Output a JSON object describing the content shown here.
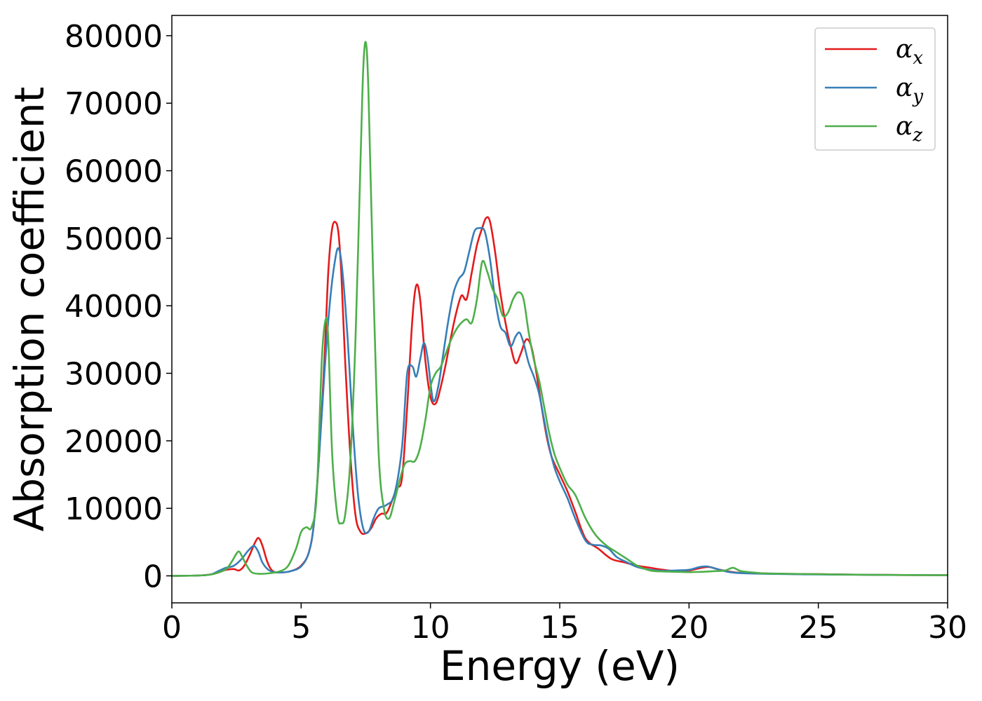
{
  "chart_data": {
    "type": "line",
    "xlabel": "Energy (eV)",
    "ylabel": "Absorption coefficient",
    "xlim": [
      0,
      30
    ],
    "ylim": [
      -4000,
      83000
    ],
    "x_ticks": [
      0,
      5,
      10,
      15,
      20,
      25,
      30
    ],
    "y_ticks": [
      0,
      10000,
      20000,
      30000,
      40000,
      50000,
      60000,
      70000,
      80000
    ],
    "grid": false,
    "legend_position": "top-right",
    "series": [
      {
        "name": "αx",
        "symbol": "α",
        "subscript": "x",
        "color": "#e41a1c",
        "x": [
          0,
          1,
          1.5,
          1.8,
          2.1,
          2.4,
          2.6,
          2.8,
          3.0,
          3.2,
          3.35,
          3.5,
          3.7,
          3.9,
          4.2,
          4.6,
          5.0,
          5.3,
          5.5,
          5.7,
          5.9,
          6.05,
          6.2,
          6.35,
          6.45,
          6.55,
          6.7,
          6.9,
          7.1,
          7.3,
          7.5,
          7.7,
          7.9,
          8.1,
          8.3,
          8.5,
          8.7,
          8.9,
          9.1,
          9.3,
          9.45,
          9.6,
          9.8,
          10.0,
          10.2,
          10.4,
          10.6,
          10.8,
          11.0,
          11.2,
          11.4,
          11.6,
          11.8,
          12.0,
          12.15,
          12.3,
          12.5,
          12.7,
          12.9,
          13.1,
          13.3,
          13.5,
          13.7,
          13.9,
          14.1,
          14.3,
          14.5,
          14.7,
          15.0,
          15.3,
          15.6,
          16.0,
          16.5,
          17.0,
          17.5,
          18.0,
          18.5,
          19.0,
          19.5,
          20.0,
          20.5,
          20.8,
          21.2,
          21.8,
          22.5,
          23.5,
          25,
          27,
          30
        ],
        "values": [
          0,
          50,
          200,
          500,
          900,
          1000,
          800,
          1500,
          3000,
          4800,
          5600,
          4500,
          2000,
          700,
          500,
          700,
          1500,
          3500,
          8000,
          18000,
          32000,
          45000,
          51500,
          52300,
          50500,
          45000,
          32000,
          18000,
          9000,
          6500,
          6300,
          7000,
          8500,
          9200,
          9300,
          11000,
          13000,
          14500,
          25000,
          38000,
          43000,
          41000,
          32000,
          26500,
          25500,
          28000,
          31500,
          35500,
          39000,
          41500,
          41000,
          45000,
          49000,
          51500,
          53000,
          52500,
          48000,
          42000,
          37500,
          34000,
          31500,
          33000,
          35000,
          34000,
          30000,
          25000,
          20500,
          17500,
          15000,
          12500,
          9500,
          5500,
          4000,
          2500,
          2000,
          1500,
          1200,
          900,
          700,
          800,
          1200,
          1300,
          900,
          500,
          400,
          300,
          250,
          150,
          100
        ]
      },
      {
        "name": "αy",
        "symbol": "α",
        "subscript": "y",
        "color": "#377eb8",
        "x": [
          0,
          1,
          1.5,
          1.8,
          2.1,
          2.4,
          2.7,
          2.9,
          3.1,
          3.2,
          3.35,
          3.5,
          3.7,
          3.9,
          4.2,
          4.6,
          5.0,
          5.3,
          5.5,
          5.7,
          5.9,
          6.1,
          6.3,
          6.45,
          6.6,
          6.8,
          7.0,
          7.2,
          7.4,
          7.6,
          7.8,
          8.0,
          8.3,
          8.6,
          8.9,
          9.1,
          9.3,
          9.45,
          9.6,
          9.75,
          9.9,
          10.1,
          10.3,
          10.5,
          10.7,
          10.9,
          11.1,
          11.3,
          11.5,
          11.7,
          11.9,
          12.1,
          12.3,
          12.5,
          12.7,
          12.9,
          13.1,
          13.3,
          13.45,
          13.6,
          13.8,
          14.0,
          14.2,
          14.4,
          14.6,
          14.8,
          15.0,
          15.3,
          15.6,
          16.0,
          16.3,
          16.6,
          16.9,
          17.2,
          17.6,
          18.0,
          18.5,
          19.0,
          19.5,
          20.0,
          20.4,
          20.7,
          21.0,
          21.5,
          22.0,
          23,
          25,
          27,
          30
        ],
        "values": [
          0,
          50,
          200,
          700,
          1200,
          1500,
          2500,
          3500,
          4300,
          4400,
          3500,
          2000,
          1000,
          600,
          500,
          700,
          1400,
          3500,
          8000,
          18000,
          30000,
          40000,
          46500,
          48500,
          45000,
          35000,
          22000,
          12000,
          7000,
          6500,
          8500,
          10000,
          10500,
          12000,
          19000,
          30000,
          31000,
          29500,
          32000,
          34500,
          32000,
          26000,
          28000,
          33000,
          38000,
          42000,
          44000,
          45000,
          48000,
          51000,
          51500,
          51000,
          47000,
          41000,
          37000,
          36000,
          34000,
          35500,
          36000,
          34500,
          31500,
          29500,
          27000,
          23000,
          19000,
          16000,
          14000,
          11500,
          8500,
          5200,
          4600,
          4500,
          4000,
          2800,
          2000,
          1300,
          900,
          750,
          800,
          900,
          1300,
          1400,
          1100,
          600,
          400,
          300,
          200,
          150,
          100
        ]
      },
      {
        "name": "αz",
        "symbol": "α",
        "subscript": "z",
        "color": "#4daf4a",
        "x": [
          0,
          1,
          1.5,
          1.8,
          2.1,
          2.3,
          2.5,
          2.6,
          2.7,
          2.9,
          3.1,
          3.4,
          3.8,
          4.2,
          4.5,
          4.8,
          5.0,
          5.2,
          5.4,
          5.6,
          5.8,
          5.95,
          6.05,
          6.2,
          6.4,
          6.55,
          6.7,
          6.9,
          7.1,
          7.3,
          7.4,
          7.5,
          7.6,
          7.8,
          8.0,
          8.2,
          8.4,
          8.6,
          8.8,
          9.0,
          9.2,
          9.4,
          9.6,
          9.8,
          10.0,
          10.2,
          10.4,
          10.6,
          10.8,
          11.0,
          11.2,
          11.4,
          11.6,
          11.8,
          12.0,
          12.2,
          12.4,
          12.6,
          12.8,
          13.0,
          13.2,
          13.4,
          13.6,
          13.8,
          14.0,
          14.2,
          14.4,
          14.6,
          14.8,
          15.0,
          15.3,
          15.6,
          16.0,
          16.4,
          16.8,
          17.2,
          17.6,
          18.0,
          18.5,
          19.0,
          19.5,
          20.0,
          20.5,
          21.0,
          21.4,
          21.7,
          22.0,
          22.5,
          23,
          25,
          27,
          30
        ],
        "values": [
          0,
          50,
          200,
          500,
          1000,
          2000,
          3300,
          3600,
          3000,
          1500,
          500,
          300,
          400,
          700,
          1500,
          4000,
          6500,
          7200,
          7200,
          12000,
          32000,
          38000,
          35000,
          18000,
          9000,
          7800,
          9000,
          17000,
          35000,
          62000,
          75000,
          79000,
          72000,
          42000,
          18000,
          10000,
          8500,
          11000,
          14000,
          16500,
          17000,
          17000,
          19000,
          23000,
          28000,
          30000,
          31000,
          33000,
          35000,
          36500,
          37500,
          38000,
          37500,
          41000,
          46500,
          45000,
          42500,
          41000,
          38500,
          39000,
          41000,
          42000,
          41000,
          36000,
          32000,
          29000,
          25000,
          21000,
          18000,
          16000,
          13500,
          12000,
          8500,
          6000,
          4500,
          3500,
          2500,
          1500,
          800,
          650,
          600,
          550,
          600,
          700,
          800,
          1200,
          700,
          500,
          350,
          250,
          150,
          100
        ]
      }
    ]
  }
}
